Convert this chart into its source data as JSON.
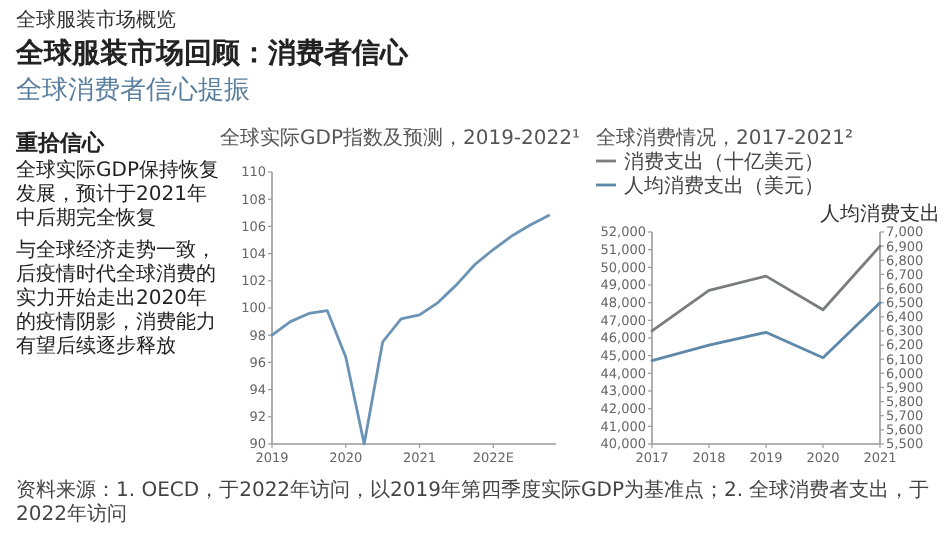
{
  "chart_data": [
    {
      "type": "other",
      "title": "全球服装市场回顾：消费者信心",
      "subtitle": "全球消费者信心提振",
      "annotations": [
        "全球服装市场概览",
        "重拾信心",
        "全球实际GDP保持恢复发展，预计于2021年中后期完全恢复",
        "与全球经济走势一致，后疫情时代全球消费的实力开始走出2020年的疫情阴影，消费能力有望后续逐步释放",
        "资料来源：1. OECD，于2022年访问，以2019年第四季度实际GDP为基准点；2. 全球消费者支出，于2022年访问"
      ]
    },
    {
      "type": "line",
      "title": "全球实际GDP指数及预测，2019-2022¹",
      "x": [
        2019,
        2019.25,
        2019.5,
        2019.75,
        2020,
        2020.25,
        2020.5,
        2020.75,
        2021,
        2021.25,
        2021.5,
        2021.75,
        2022,
        2022.25,
        2022.5,
        2022.75
      ],
      "series": [
        {
          "color": "#6b93b5",
          "values": [
            98.0,
            99.0,
            99.6,
            99.8,
            96.4,
            90.0,
            97.5,
            99.2,
            99.5,
            100.4,
            101.7,
            103.2,
            104.3,
            105.3,
            106.1,
            106.8
          ]
        }
      ],
      "xlim": [
        2019,
        2022.85
      ],
      "xticks": [
        2019,
        2020,
        2021,
        {
          "value": 2022,
          "label": "2022E"
        }
      ],
      "ylim": [
        90,
        110
      ],
      "yticks": [
        90,
        92,
        94,
        96,
        98,
        100,
        102,
        104,
        106,
        108,
        110
      ]
    },
    {
      "type": "line",
      "title": "全球消费情况，2017-2021²",
      "categories": [
        "2017",
        "2018",
        "2019",
        "2020",
        "2021"
      ],
      "legend": "top left",
      "y2label": "人均消费支出",
      "series": [
        {
          "name": "消费支出（十亿美元）",
          "color": "#7a7c80",
          "values": [
            46400,
            48700,
            49500,
            47600,
            51200
          ]
        },
        {
          "name": "人均消费支出（美元）",
          "color": "#5e88aa",
          "axis": "y2",
          "values": [
            6090,
            6200,
            6290,
            6110,
            6500
          ]
        }
      ],
      "ylim": [
        40000,
        52000
      ],
      "yticks": [
        {
          "value": 40000,
          "label": "40,000"
        },
        {
          "value": 41000,
          "label": "41,000"
        },
        {
          "value": 42000,
          "label": "42,000"
        },
        {
          "value": 43000,
          "label": "43,000"
        },
        {
          "value": 44000,
          "label": "44,000"
        },
        {
          "value": 45000,
          "label": "45,000"
        },
        {
          "value": 46000,
          "label": "46,000"
        },
        {
          "value": 47000,
          "label": "47,000"
        },
        {
          "value": 48000,
          "label": "48,000"
        },
        {
          "value": 49000,
          "label": "49,000"
        },
        {
          "value": 50000,
          "label": "50,000"
        },
        {
          "value": 51000,
          "label": "51,000"
        },
        {
          "value": 52000,
          "label": "52,000"
        }
      ],
      "y2lim": [
        5500,
        7000
      ],
      "y2ticks": [
        {
          "value": 5500,
          "label": "5,500"
        },
        {
          "value": 5600,
          "label": "5,600"
        },
        {
          "value": 5700,
          "label": "5,700"
        },
        {
          "value": 5800,
          "label": "5,800"
        },
        {
          "value": 5900,
          "label": "5,900"
        },
        {
          "value": 6000,
          "label": "6,000"
        },
        {
          "value": 6100,
          "label": "6,100"
        },
        {
          "value": 6200,
          "label": "6,200"
        },
        {
          "value": 6300,
          "label": "6,300"
        },
        {
          "value": 6400,
          "label": "6,400"
        },
        {
          "value": 6500,
          "label": "6,500"
        },
        {
          "value": 6600,
          "label": "6,600"
        },
        {
          "value": 6700,
          "label": "6,700"
        },
        {
          "value": 6800,
          "label": "6,800"
        },
        {
          "value": 6900,
          "label": "6,900"
        },
        {
          "value": 7000,
          "label": "7,000"
        }
      ]
    }
  ]
}
